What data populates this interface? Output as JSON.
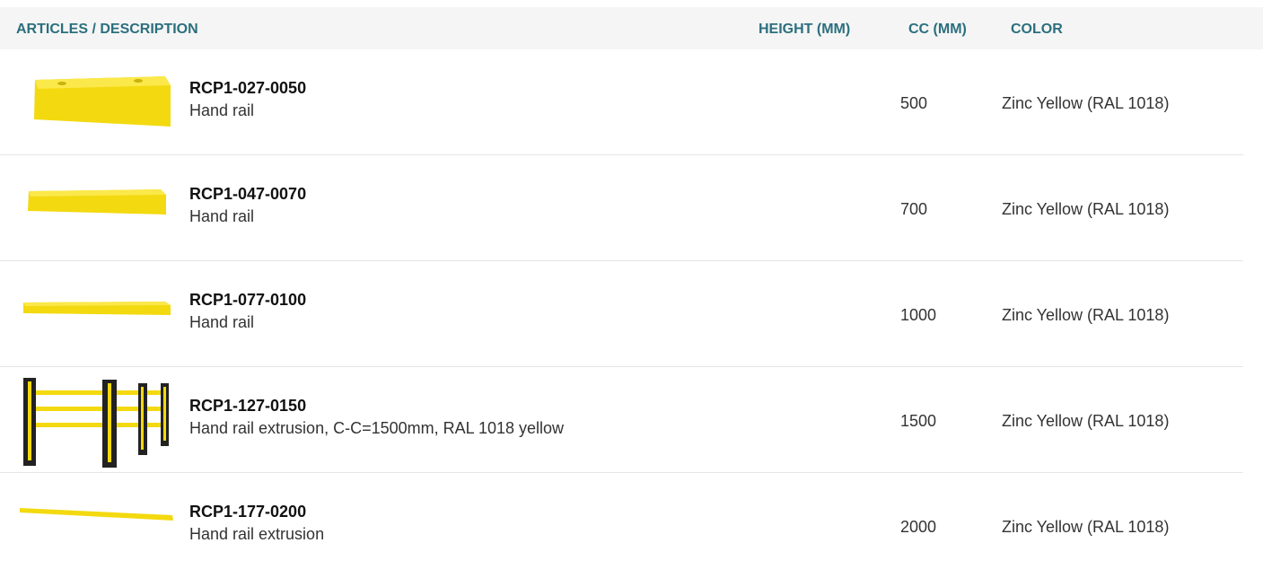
{
  "header": {
    "articles": "ARTICLES / DESCRIPTION",
    "height": "HEIGHT (MM)",
    "cc": "CC (MM)",
    "color": "COLOR"
  },
  "rows": [
    {
      "code": "RCP1-027-0050",
      "description": "Hand rail",
      "cc": 500,
      "color": "Zinc Yellow (RAL 1018)"
    },
    {
      "code": "RCP1-047-0070",
      "description": "Hand rail",
      "cc": 700,
      "color": "Zinc Yellow (RAL 1018)"
    },
    {
      "code": "RCP1-077-0100",
      "description": "Hand rail",
      "cc": 1000,
      "color": "Zinc Yellow (RAL 1018)"
    },
    {
      "code": "RCP1-127-0150",
      "description": "Hand rail extrusion, C-C=1500mm, RAL 1018 yellow",
      "cc": 1500,
      "color": "Zinc Yellow (RAL 1018)"
    },
    {
      "code": "RCP1-177-0200",
      "description": "Hand rail extrusion",
      "cc": 2000,
      "color": "Zinc Yellow (RAL 1018)"
    }
  ]
}
